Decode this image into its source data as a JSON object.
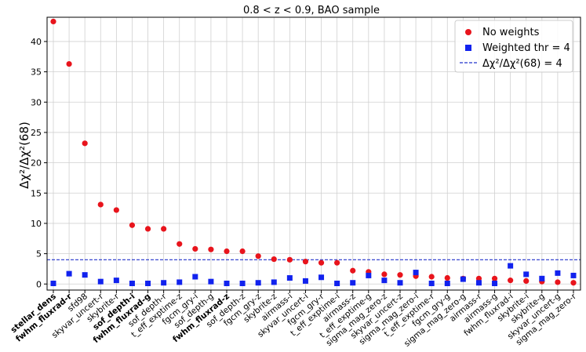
{
  "chart_data": {
    "type": "scatter",
    "title": "0.8 < z < 0.9, BAO sample",
    "xlabel": "",
    "ylabel": "Δχ²/Δχ²(68)",
    "ylim": [
      -1,
      44
    ],
    "yticks": [
      0,
      5,
      10,
      15,
      20,
      25,
      30,
      35,
      40
    ],
    "grid": true,
    "legend_position": "top-right",
    "categories": [
      "stellar_dens",
      "fwhm_fluxrad-r",
      "sfd98",
      "skyvar_uncert-r",
      "skybrite-r",
      "sof_depth-i",
      "fwhm_fluxrad-g",
      "sof_depth-r",
      "t_eff_exptime-z",
      "fgcm_gry-i",
      "sof_depth-g",
      "fwhm_fluxrad-z",
      "sof_depth-z",
      "fgcm_gry-z",
      "skybrite-z",
      "airmass-i",
      "skyvar_uncert-i",
      "fgcm_gry-r",
      "t_eff_exptime-i",
      "airmass-z",
      "t_eff_exptime-g",
      "sigma_mag_zero-z",
      "skyvar_uncert-z",
      "sigma_mag_zero-i",
      "t_eff_exptime-r",
      "fgcm_gry-g",
      "sigma_mag_zero-g",
      "airmass-r",
      "airmass-g",
      "fwhm_fluxrad-i",
      "skybrite-i",
      "skybrite-g",
      "skyvar_uncert-g",
      "sigma_mag_zero-r"
    ],
    "bold_categories": [
      "stellar_dens",
      "fwhm_fluxrad-r",
      "sof_depth-i",
      "fwhm_fluxrad-g",
      "fwhm_fluxrad-z"
    ],
    "series": [
      {
        "name": "No weights",
        "marker": "circle",
        "color": "#e8141c",
        "values": [
          43.3,
          36.3,
          23.2,
          13.1,
          12.2,
          9.7,
          9.1,
          9.1,
          6.6,
          5.8,
          5.7,
          5.4,
          5.4,
          4.6,
          4.1,
          4.0,
          3.7,
          3.5,
          3.5,
          2.2,
          2.0,
          1.6,
          1.5,
          1.3,
          1.2,
          1.0,
          0.9,
          0.9,
          0.9,
          0.6,
          0.5,
          0.4,
          0.3,
          0.2
        ]
      },
      {
        "name": "Weighted thr = 4",
        "marker": "square",
        "color": "#1122ee",
        "values": [
          0.1,
          1.7,
          1.5,
          0.4,
          0.6,
          0.1,
          0.1,
          0.2,
          0.3,
          1.2,
          0.4,
          0.1,
          0.1,
          0.2,
          0.3,
          1.0,
          0.5,
          1.1,
          0.1,
          0.2,
          1.4,
          0.6,
          0.2,
          1.9,
          0.1,
          0.1,
          0.8,
          0.2,
          0.1,
          3.0,
          1.6,
          0.9,
          1.8,
          1.4
        ]
      }
    ],
    "reference_line": {
      "value": 4,
      "label": "Δχ²/Δχ²(68) = 4",
      "color": "#2233cc",
      "style": "dashed"
    }
  }
}
